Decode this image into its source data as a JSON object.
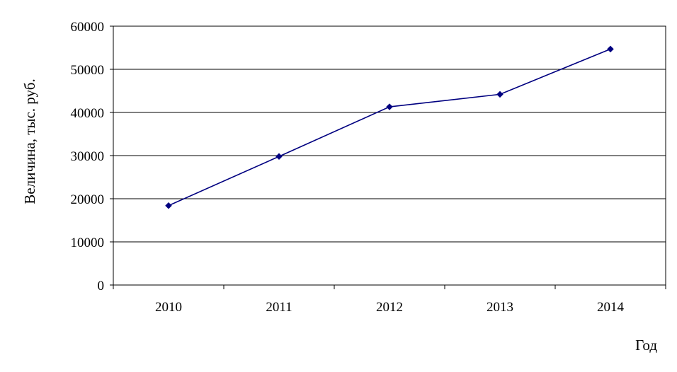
{
  "chart_data": {
    "type": "line",
    "title": "",
    "xlabel": "Год",
    "ylabel": "Величина, тыс. руб.",
    "categories": [
      "2010",
      "2011",
      "2012",
      "2013",
      "2014"
    ],
    "series": [
      {
        "values": [
          18400,
          29800,
          41300,
          44200,
          54700
        ]
      }
    ],
    "ylim": [
      0,
      60000
    ],
    "yticks": [
      "0",
      "10000",
      "20000",
      "30000",
      "40000",
      "50000",
      "60000"
    ],
    "grid": true,
    "legend": "none",
    "colors": {
      "line": "#000080",
      "grid": "#000000",
      "axis": "#000000"
    }
  }
}
